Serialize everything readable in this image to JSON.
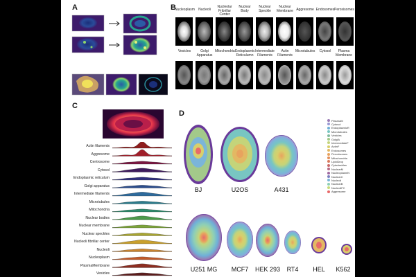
{
  "panels": {
    "a": "A",
    "b": "B",
    "c": "C",
    "d": "D"
  },
  "panel_b": {
    "row1": [
      "Nucleoplasm",
      "Nucleoli",
      "Nucleolar Fribrillar Center",
      "Nuclear Body",
      "Nuclear Speckle",
      "Nuclear Membrane",
      "Aggresome",
      "Endosomes",
      "Peroxisomes"
    ],
    "row2": [
      "Vesicles",
      "Golgi Apparatus",
      "Mitochondria",
      "Endoplasmic Reticulumn",
      "Intermediate Filaments",
      "Actin Filaments",
      "Microtubules",
      "Cytosol",
      "Plasma Membrane"
    ]
  },
  "panel_c": {
    "labels": [
      "Actin filaments",
      "Aggresome",
      "Centrosome",
      "Cytosol",
      "Endoplasmic reticulum",
      "Golgi apparatus",
      "Intermediate filaments",
      "Microtubules",
      "Mitochondria",
      "Nuclear bodies",
      "Nuclear membrane",
      "Nuclear speckles",
      "Nucleoli fibrillar center",
      "Nucleoli",
      "Nucleoplasm",
      "PlasmaMembrane",
      "Vesicles"
    ],
    "colors": [
      "#8e1d1d",
      "#a01f2a",
      "#7a1640",
      "#3d1a5c",
      "#2f2f7d",
      "#2b4d8c",
      "#2d6a9c",
      "#2d7c8c",
      "#2e8c6d",
      "#4c9a4a",
      "#7da53a",
      "#a8a532",
      "#c9a02d",
      "#c98430",
      "#c25a2a",
      "#8d2d20",
      "#5b1c1c"
    ]
  },
  "panel_d": {
    "cells": [
      "BJ",
      "U2OS",
      "A431",
      "U251 MG",
      "MCF7",
      "HEK 293",
      "RT4",
      "HEL",
      "K562"
    ],
    "legend": [
      "PlasmaM",
      "Cytosol",
      "EndoplasmicR",
      "Microtubules",
      "Vesicles",
      "GolgiA",
      "IntermediateF",
      "ActinF",
      "Endosomes",
      "Peroxisomes",
      "Mitochondria",
      "LipidDrop",
      "Cytodesbles",
      "NuclearM",
      "NucleoplasmN",
      "NuclearC",
      "Nucleoli",
      "NuclearB",
      "NucleoliFC",
      "Aggresome"
    ],
    "legend_colors": [
      "#9a7bb5",
      "#9a9ad5",
      "#6fb0d8",
      "#78c6c2",
      "#82bba0",
      "#a3c98a",
      "#c4d47a",
      "#d8cf6b",
      "#e3b863",
      "#e8a35e",
      "#e38f5b",
      "#d97a5c",
      "#c96a6a",
      "#b86a86",
      "#a06aa0",
      "#7d7fc0",
      "#7bb5d9",
      "#8fd0b5",
      "#c7dc7a",
      "#e86a6a"
    ]
  }
}
